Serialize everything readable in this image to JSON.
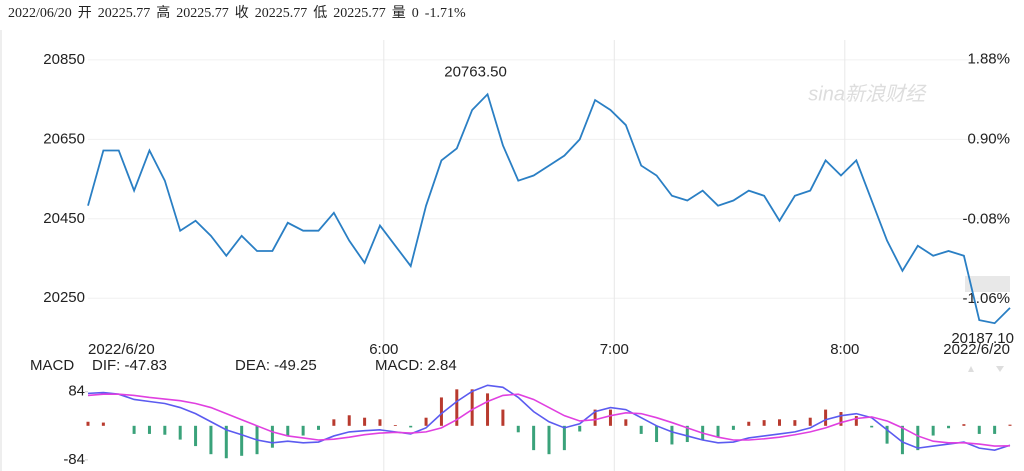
{
  "header": {
    "date": "2022/06/20",
    "items": [
      {
        "label": "开",
        "value": "20225.77"
      },
      {
        "label": "高",
        "value": "20225.77"
      },
      {
        "label": "收",
        "value": "20225.77"
      },
      {
        "label": "低",
        "value": "20225.77"
      },
      {
        "label": "量",
        "value": "0"
      }
    ],
    "change": "-1.71%"
  },
  "watermark": "sina新浪财经",
  "chart_data": [
    {
      "type": "line",
      "x": [
        0,
        4,
        8,
        12,
        16,
        20,
        24,
        28,
        32,
        36,
        40,
        44,
        48,
        52,
        56,
        60,
        64,
        68,
        72,
        76,
        80,
        84,
        88,
        92,
        96,
        100,
        104,
        108,
        112,
        116,
        120,
        124,
        128,
        132,
        136,
        140,
        144,
        148,
        152,
        156,
        160,
        164,
        168,
        172,
        176,
        180,
        184,
        188,
        192,
        196,
        200,
        204,
        208,
        212,
        216,
        220,
        224,
        228,
        232,
        236,
        240
      ],
      "series": [
        {
          "color": "#2a7fc4",
          "values": [
            20483,
            20622,
            20622,
            20521,
            20622,
            20546,
            20420,
            20445,
            20407,
            20357,
            20407,
            20369,
            20369,
            20440,
            20420,
            20420,
            20465,
            20395,
            20339,
            20433,
            20382,
            20331,
            20483,
            20597,
            20627,
            20724,
            20763.5,
            20635,
            20546,
            20559,
            20584,
            20609,
            20650,
            20749,
            20724,
            20686,
            20584,
            20559,
            20508,
            20496,
            20521,
            20483,
            20496,
            20521,
            20508,
            20445,
            20508,
            20521,
            20597,
            20559,
            20597,
            20496,
            20395,
            20319,
            20382,
            20357,
            20369,
            20357,
            20195,
            20187.1,
            20225.77
          ]
        }
      ],
      "xlim": [
        0,
        240
      ],
      "xticks": [
        {
          "value": 0,
          "label": "2022/6/20"
        },
        {
          "value": 77,
          "label": "6:00"
        },
        {
          "value": 137,
          "label": "7:00"
        },
        {
          "value": 197,
          "label": "8:00"
        },
        {
          "value": 240,
          "label": "2022/6/20"
        }
      ],
      "ylim": [
        20170,
        20875
      ],
      "yticks": [
        20850,
        20650,
        20450,
        20250
      ],
      "y2lim": [
        -1.44,
        2.0
      ],
      "y2ticks": [
        {
          "value": 1.88,
          "label": "1.88%"
        },
        {
          "value": 0.9,
          "label": "0.90%"
        },
        {
          "value": -0.08,
          "label": "-0.08%"
        },
        {
          "value": -1.06,
          "label": "-1.06%"
        }
      ],
      "max_label": "20763.50",
      "min_label": "20187.10",
      "grid": true
    },
    {
      "type": "macd",
      "title": "MACD",
      "xlim": [
        0,
        240
      ],
      "x": [
        0,
        4,
        8,
        12,
        16,
        20,
        24,
        28,
        32,
        36,
        40,
        44,
        48,
        52,
        56,
        60,
        64,
        68,
        72,
        76,
        80,
        84,
        88,
        92,
        96,
        100,
        104,
        108,
        112,
        116,
        120,
        124,
        128,
        132,
        136,
        140,
        144,
        148,
        152,
        156,
        160,
        164,
        168,
        172,
        176,
        180,
        184,
        188,
        192,
        196,
        200,
        204,
        208,
        212,
        216,
        220,
        224,
        228,
        232,
        236,
        240
      ],
      "series": [
        {
          "name": "DIF",
          "color": "#5b5bf0",
          "values": [
            80,
            82,
            78,
            65,
            60,
            55,
            45,
            30,
            10,
            -10,
            -22,
            -35,
            -42,
            -38,
            -42,
            -40,
            -25,
            -15,
            -12,
            -10,
            -15,
            -20,
            -5,
            30,
            60,
            85,
            100,
            95,
            70,
            35,
            10,
            -5,
            5,
            35,
            45,
            40,
            20,
            0,
            -15,
            -25,
            -35,
            -42,
            -40,
            -30,
            -25,
            -20,
            -15,
            -5,
            15,
            25,
            30,
            20,
            -10,
            -40,
            -55,
            -50,
            -45,
            -40,
            -55,
            -60,
            -47.83
          ]
        },
        {
          "name": "DEA",
          "color": "#e040e0",
          "values": [
            75,
            78,
            78,
            75,
            70,
            66,
            62,
            55,
            45,
            30,
            15,
            0,
            -15,
            -25,
            -30,
            -35,
            -33,
            -28,
            -22,
            -18,
            -16,
            -18,
            -15,
            -5,
            15,
            40,
            60,
            75,
            78,
            65,
            45,
            25,
            12,
            15,
            25,
            32,
            30,
            20,
            8,
            -5,
            -18,
            -28,
            -35,
            -35,
            -32,
            -28,
            -22,
            -15,
            -5,
            8,
            18,
            22,
            12,
            -5,
            -25,
            -38,
            -42,
            -42,
            -45,
            -50,
            -49.25
          ]
        }
      ],
      "histogram": {
        "name": "MACD",
        "up_color": "#b83a2e",
        "down_color": "#3aa27a",
        "values": [
          10,
          8,
          0,
          -20,
          -20,
          -22,
          -34,
          -50,
          -70,
          -80,
          -74,
          -70,
          -54,
          -26,
          -24,
          -10,
          16,
          26,
          20,
          16,
          2,
          -4,
          20,
          70,
          90,
          90,
          80,
          40,
          -16,
          -60,
          -70,
          -60,
          -14,
          40,
          40,
          16,
          -20,
          -40,
          -46,
          -40,
          -34,
          -28,
          -10,
          10,
          14,
          16,
          14,
          20,
          40,
          34,
          24,
          -4,
          -44,
          -70,
          -60,
          -24,
          -6,
          4,
          -20,
          -20,
          2.84
        ]
      },
      "legend": [
        "DIF: -47.83",
        "DEA: -49.25",
        "MACD: 2.84"
      ],
      "legend_colors": [
        "#5b5bf0",
        "#e040e0",
        "#b83a2e"
      ],
      "ylim": [
        -109,
        113
      ],
      "yticks": [
        84,
        -84
      ]
    }
  ]
}
